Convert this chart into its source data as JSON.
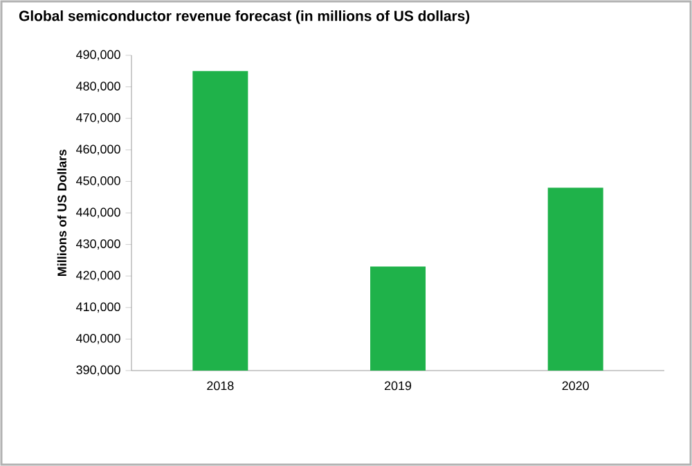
{
  "chart_data": {
    "type": "bar",
    "title": "Global semiconductor revenue forecast (in millions of US dollars)",
    "ylabel": "Millions of US Dollars",
    "categories": [
      "2018",
      "2019",
      "2020"
    ],
    "values": [
      485000,
      423000,
      448000
    ],
    "color": "#1fb24a",
    "ylim": [
      390000,
      490000
    ],
    "yticks": [
      {
        "value": 390000,
        "label": "390,000"
      },
      {
        "value": 400000,
        "label": "400,000"
      },
      {
        "value": 410000,
        "label": "410,000"
      },
      {
        "value": 420000,
        "label": "420,000"
      },
      {
        "value": 430000,
        "label": "430,000"
      },
      {
        "value": 440000,
        "label": "440,000"
      },
      {
        "value": 450000,
        "label": "450,000"
      },
      {
        "value": 460000,
        "label": "460,000"
      },
      {
        "value": 470000,
        "label": "470,000"
      },
      {
        "value": 480000,
        "label": "480,000"
      },
      {
        "value": 490000,
        "label": "490,000"
      }
    ],
    "grid": false
  }
}
